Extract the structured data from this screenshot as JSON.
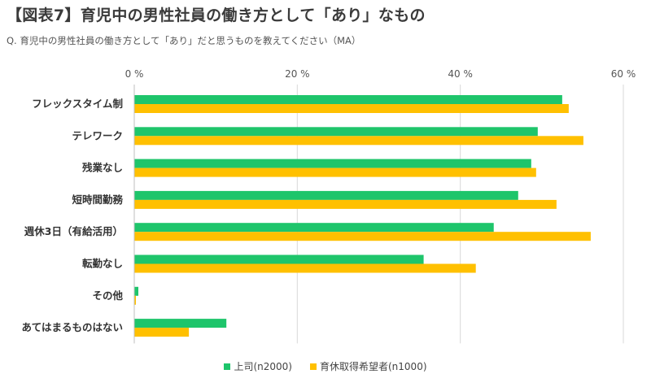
{
  "header": {
    "title": "【図表7】育児中の男性社員の働き方として「あり」なもの",
    "question": "Q.  育児中の男性社員の働き方として「あり」だと思うものを教えてください（MA）"
  },
  "chart_data": {
    "type": "bar",
    "orientation": "horizontal",
    "xlim": [
      0,
      60
    ],
    "ticks": [
      0,
      20,
      40,
      60
    ],
    "tick_labels": [
      "0 %",
      "20 %",
      "40 %",
      "60 %"
    ],
    "categories": [
      "フレックスタイム制",
      "テレワーク",
      "残業なし",
      "短時間勤務",
      "週休3日（有給活用）",
      "転勤なし",
      "その他",
      "あてはまるものはない"
    ],
    "series": [
      {
        "name": "上司(n2000)",
        "color": "#1ec56b",
        "values": [
          52.5,
          49.5,
          48.7,
          47.1,
          44.1,
          35.5,
          0.5,
          11.3
        ]
      },
      {
        "name": "育休取得希望者(n1000)",
        "color": "#ffc000",
        "values": [
          53.3,
          55.1,
          49.3,
          51.8,
          56.0,
          41.9,
          0.2,
          6.7
        ]
      }
    ],
    "grid": true,
    "legend_position": "bottom"
  }
}
